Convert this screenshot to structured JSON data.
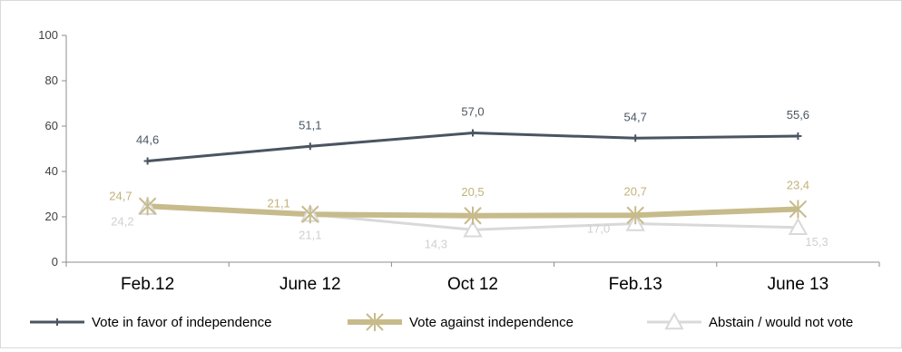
{
  "chart_data": {
    "type": "line",
    "categories": [
      "Feb.12",
      "June 12",
      "Oct 12",
      "Feb.13",
      "June 13"
    ],
    "ylim": [
      0,
      100
    ],
    "yticks": [
      "0",
      "20",
      "40",
      "60",
      "80",
      "100"
    ],
    "grid": false,
    "legend_position": "bottom",
    "series": [
      {
        "name": "Vote in favor of independence",
        "values": [
          44.6,
          51.1,
          57.0,
          54.7,
          55.6
        ],
        "labels": [
          "44,6",
          "51,1",
          "57,0",
          "54,7",
          "55,6"
        ],
        "color": "#4a5561",
        "label_color": "#4a5561",
        "marker": "plus"
      },
      {
        "name": "Vote against independence",
        "values": [
          24.7,
          21.1,
          20.5,
          20.7,
          23.4
        ],
        "labels": [
          "24,7",
          "21,1",
          "20,5",
          "20,7",
          "23,4"
        ],
        "color": "#c7bb8c",
        "label_color": "#c2b27a",
        "marker": "asterisk"
      },
      {
        "name": "Abstain / would not vote",
        "values": [
          24.2,
          21.1,
          14.3,
          17.0,
          15.3
        ],
        "labels": [
          "24,2",
          "21,1",
          "14,3",
          "17,0",
          "15,3"
        ],
        "color": "#d9d9d9",
        "label_color": "#d0d0d0",
        "marker": "triangle"
      }
    ]
  }
}
